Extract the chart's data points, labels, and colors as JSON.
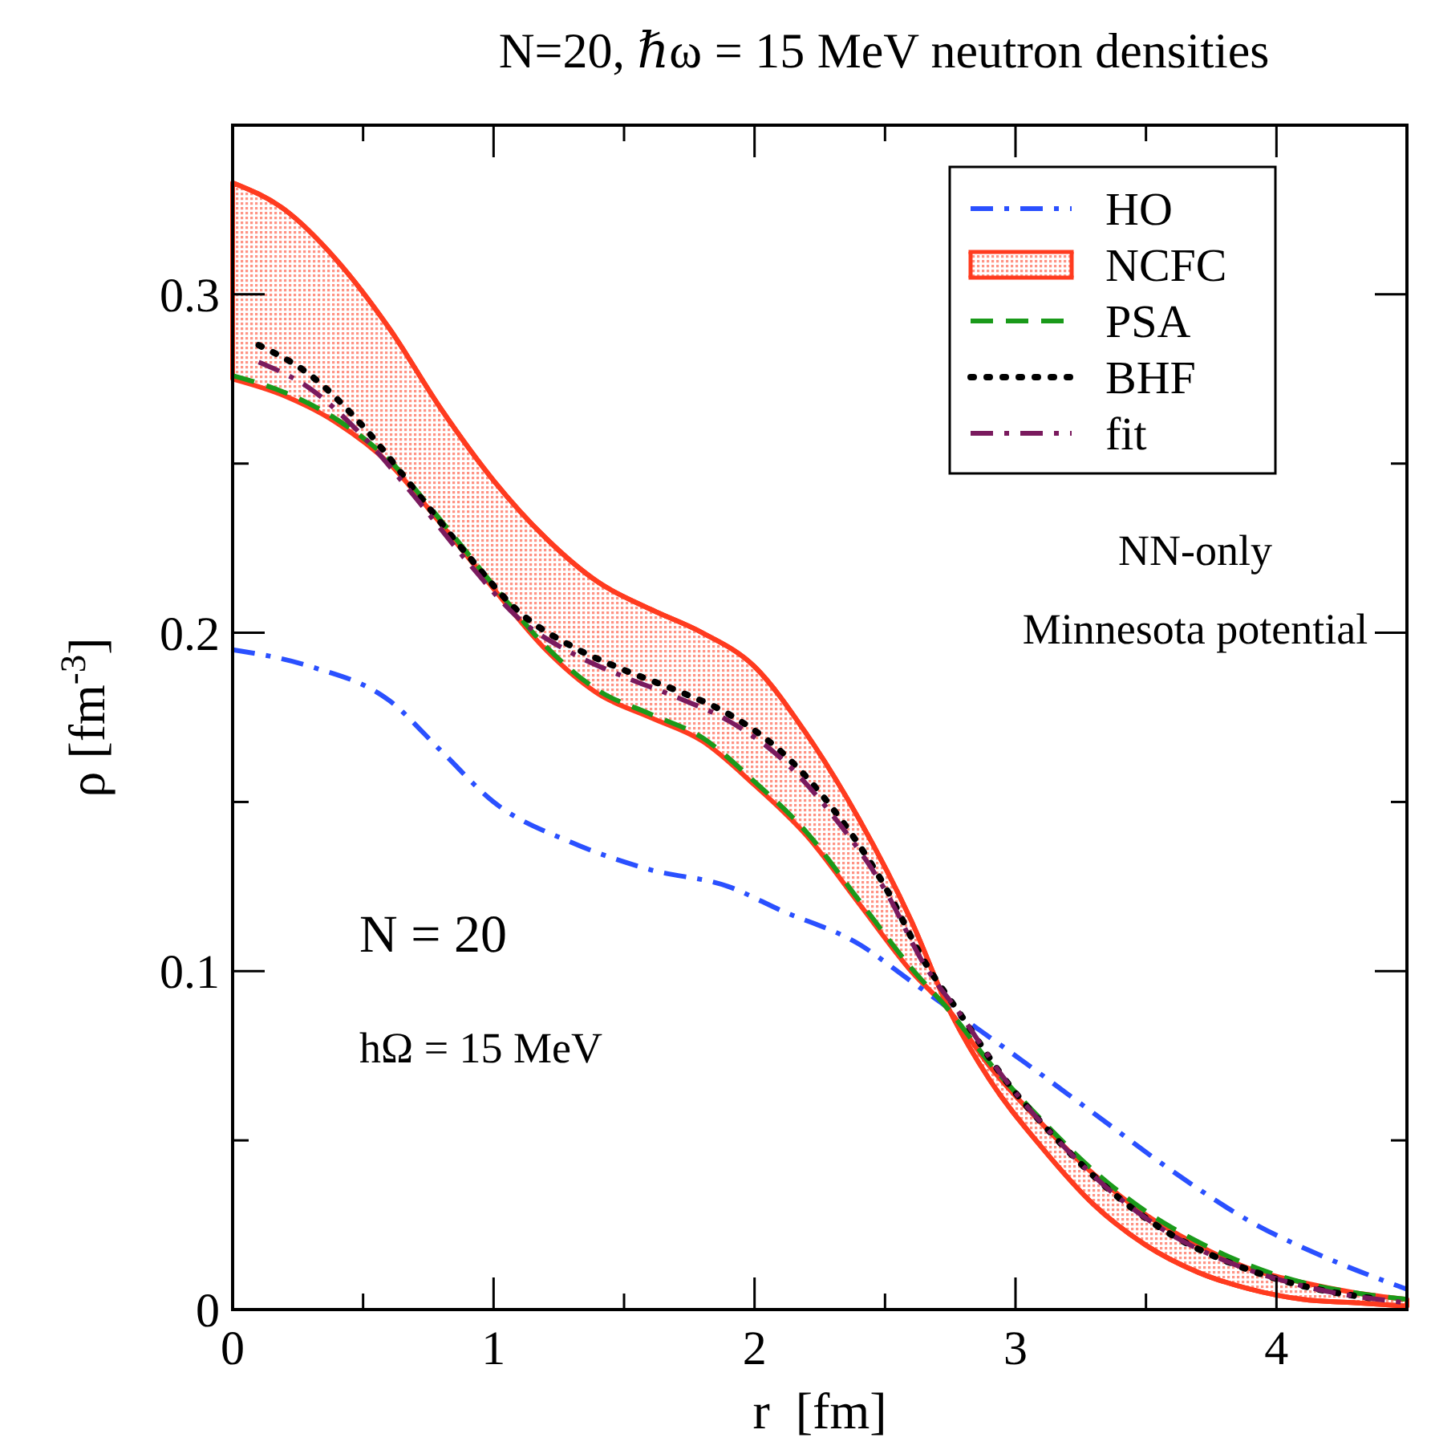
{
  "chart_data": {
    "type": "line",
    "title": "N=20, ℏω = 15 MeV neutron densities",
    "xlabel": "r  [fm]",
    "ylabel": "ρ [fm$^{-3}$]",
    "xlim": [
      0,
      4.5
    ],
    "ylim": [
      0,
      0.35
    ],
    "xticks": [
      0,
      {
        "value": 0.5,
        "label": null
      },
      1,
      {
        "value": 1.5,
        "label": null
      },
      2,
      {
        "value": 2.5,
        "label": null
      },
      3,
      {
        "value": 3.5,
        "label": null
      },
      4,
      {
        "value": 4.5,
        "label": null
      }
    ],
    "yticks": [
      0,
      {
        "value": 0.05,
        "label": null
      },
      0.1,
      {
        "value": 0.15,
        "label": null
      },
      0.2,
      {
        "value": 0.25,
        "label": null
      },
      0.3,
      {
        "value": 0.35,
        "label": null
      }
    ],
    "grid": false,
    "legend": "top right",
    "annotations": [
      "NN-only",
      "Minnesota potential",
      "N = 20",
      "hΩ = 15 MeV"
    ],
    "series": [
      {
        "name": "HO",
        "color": "#2a50ff",
        "line_style": "dashdot",
        "x": [
          0,
          0.3,
          0.6,
          0.8,
          1.0,
          1.3,
          1.6,
          1.9,
          2.1,
          2.4,
          2.6,
          2.8,
          3.0,
          3.3,
          3.6,
          3.9,
          4.2,
          4.5
        ],
        "values": [
          0.195,
          0.19,
          0.18,
          0.165,
          0.15,
          0.138,
          0.13,
          0.125,
          0.118,
          0.108,
          0.097,
          0.086,
          0.075,
          0.058,
          0.041,
          0.026,
          0.015,
          0.006
        ]
      },
      {
        "name": "NCFC",
        "line_style": "solid",
        "color": "#ff3b1f",
        "x": [
          0,
          0.2,
          0.4,
          0.6,
          0.8,
          1.0,
          1.2,
          1.4,
          1.6,
          1.8,
          2.0,
          2.2,
          2.4,
          2.6,
          2.75,
          2.9,
          3.1,
          3.3,
          3.5,
          3.7,
          3.9,
          4.1,
          4.3,
          4.5
        ],
        "values": [
          0.333,
          0.325,
          0.31,
          0.29,
          0.266,
          0.245,
          0.228,
          0.215,
          0.207,
          0.2,
          0.19,
          0.17,
          0.145,
          0.115,
          0.088,
          0.068,
          0.048,
          0.031,
          0.019,
          0.011,
          0.006,
          0.003,
          0.002,
          0.001
        ],
        "upper": [
          0.333,
          0.325,
          0.31,
          0.29,
          0.266,
          0.245,
          0.228,
          0.215,
          0.207,
          0.2,
          0.19,
          0.17,
          0.145,
          0.115,
          0.088,
          0.068,
          0.048,
          0.031,
          0.019,
          0.011,
          0.006,
          0.003,
          0.002,
          0.001
        ],
        "lower": [
          0.275,
          0.27,
          0.262,
          0.25,
          0.232,
          0.213,
          0.195,
          0.182,
          0.175,
          0.168,
          0.155,
          0.14,
          0.12,
          0.1,
          0.088,
          0.072,
          0.055,
          0.04,
          0.028,
          0.019,
          0.012,
          0.008,
          0.005,
          0.003
        ]
      },
      {
        "name": "PSA",
        "color": "#1a9a1a",
        "line_style": "dashed",
        "x": [
          0,
          0.2,
          0.4,
          0.6,
          0.8,
          1.0,
          1.2,
          1.4,
          1.6,
          1.8,
          2.0,
          2.2,
          2.4,
          2.6,
          2.75,
          2.9,
          3.1,
          3.3,
          3.5,
          3.7,
          3.9,
          4.1,
          4.3,
          4.5
        ],
        "values": [
          0.276,
          0.271,
          0.263,
          0.251,
          0.233,
          0.214,
          0.196,
          0.183,
          0.176,
          0.169,
          0.156,
          0.141,
          0.121,
          0.101,
          0.088,
          0.073,
          0.056,
          0.041,
          0.029,
          0.02,
          0.013,
          0.008,
          0.005,
          0.003
        ]
      },
      {
        "name": "BHF",
        "color": "#000000",
        "line_style": "dotted",
        "x": [
          0.1,
          0.3,
          0.5,
          0.7,
          0.9,
          1.1,
          1.3,
          1.5,
          1.7,
          1.9,
          2.1,
          2.3,
          2.5,
          2.65,
          2.8,
          2.95,
          3.15,
          3.35,
          3.6,
          3.85,
          4.1,
          4.4
        ],
        "values": [
          0.285,
          0.276,
          0.261,
          0.242,
          0.223,
          0.206,
          0.196,
          0.189,
          0.183,
          0.176,
          0.165,
          0.148,
          0.125,
          0.103,
          0.086,
          0.069,
          0.051,
          0.036,
          0.022,
          0.013,
          0.007,
          0.003
        ]
      },
      {
        "name": "fit",
        "color": "#7a1a5e",
        "line_style": "dashdot",
        "x": [
          0.1,
          0.3,
          0.5,
          0.7,
          0.9,
          1.1,
          1.3,
          1.5,
          1.7,
          1.9,
          2.1,
          2.3,
          2.5,
          2.65,
          2.8,
          2.95,
          3.15,
          3.35,
          3.6,
          3.85,
          4.1,
          4.5
        ],
        "values": [
          0.28,
          0.272,
          0.258,
          0.24,
          0.221,
          0.204,
          0.194,
          0.187,
          0.181,
          0.174,
          0.163,
          0.146,
          0.124,
          0.102,
          0.086,
          0.069,
          0.051,
          0.036,
          0.022,
          0.013,
          0.007,
          0.002
        ]
      }
    ]
  }
}
